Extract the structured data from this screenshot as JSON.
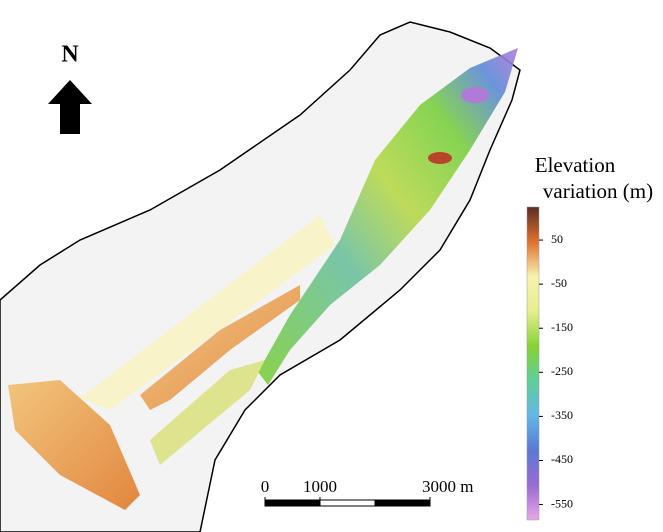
{
  "north_arrow": {
    "label": "N"
  },
  "colorbar": {
    "title": [
      "Elevation",
      "variation (m)"
    ],
    "range": [
      125,
      -585
    ],
    "ticks": [
      50,
      -50,
      -150,
      -250,
      -350,
      -450,
      -550
    ],
    "colors": [
      "#5a2e22",
      "#e0702e",
      "#f7f3b0",
      "#e6ee8c",
      "#86d334",
      "#5ccf9a",
      "#62b8e6",
      "#5a78d6",
      "#9a6ad4",
      "#e6a8e6"
    ]
  },
  "scale_bar": {
    "range": [
      0,
      3000
    ],
    "divisions": 3,
    "ticks": [
      0,
      1000,
      {
        "value": 3000,
        "label": "3000 m"
      }
    ]
  }
}
